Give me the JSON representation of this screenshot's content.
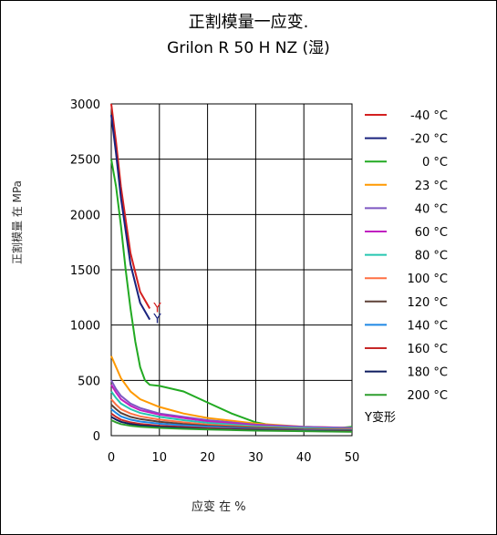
{
  "chart_data": {
    "type": "line",
    "title": "正割模量一应变.",
    "subtitle": "Grilon R 50 H NZ (湿)",
    "xlabel": "应变 在 %",
    "ylabel": "正割模量 在  MPa",
    "xlim": [
      0,
      50
    ],
    "ylim": [
      0,
      3000
    ],
    "xticks": [
      "0",
      "10",
      "20",
      "30",
      "40",
      "50"
    ],
    "yticks": [
      "0",
      "500",
      "1000",
      "1500",
      "2000",
      "2500",
      "3000"
    ],
    "grid": true,
    "legend_position": "right",
    "yield_note": "Y变形",
    "series": [
      {
        "name": "-40 °C",
        "color": "#d42020",
        "x": [
          0,
          1,
          2,
          4,
          6,
          8
        ],
        "y": [
          3000,
          2650,
          2250,
          1650,
          1300,
          1150
        ],
        "yield": {
          "x": 8,
          "y": 1150,
          "label": "Y"
        }
      },
      {
        "name": "-20 °C",
        "color": "#1a237e",
        "x": [
          0,
          1,
          2,
          4,
          6,
          8
        ],
        "y": [
          2900,
          2550,
          2150,
          1550,
          1200,
          1050
        ],
        "yield": {
          "x": 8,
          "y": 1050,
          "label": "Y"
        }
      },
      {
        "name": "0 °C",
        "color": "#22aa22",
        "x": [
          0,
          1,
          2,
          3,
          4,
          5,
          6,
          7,
          8,
          10,
          15,
          20,
          25,
          30,
          35,
          40,
          45,
          50
        ],
        "y": [
          2500,
          2250,
          1900,
          1500,
          1150,
          850,
          620,
          500,
          460,
          450,
          400,
          300,
          200,
          120,
          80,
          60,
          60,
          80
        ]
      },
      {
        "name": "23 °C",
        "color": "#ff9900",
        "x": [
          0,
          1,
          2,
          4,
          6,
          10,
          15,
          20,
          30,
          40,
          50
        ],
        "y": [
          720,
          620,
          520,
          400,
          330,
          260,
          200,
          160,
          110,
          80,
          70
        ]
      },
      {
        "name": "40 °C",
        "color": "#7e57c2",
        "x": [
          0,
          1,
          2,
          4,
          6,
          10,
          15,
          20,
          30,
          40,
          50
        ],
        "y": [
          500,
          420,
          360,
          290,
          250,
          200,
          170,
          140,
          100,
          80,
          70
        ]
      },
      {
        "name": "60 °C",
        "color": "#c020c0",
        "x": [
          0,
          1,
          2,
          4,
          6,
          10,
          15,
          20,
          30,
          40,
          50
        ],
        "y": [
          460,
          390,
          330,
          270,
          230,
          190,
          160,
          130,
          95,
          75,
          65
        ]
      },
      {
        "name": "80 °C",
        "color": "#26c6b0",
        "x": [
          0,
          1,
          2,
          4,
          6,
          10,
          15,
          20,
          30,
          40,
          50
        ],
        "y": [
          400,
          340,
          290,
          240,
          205,
          170,
          140,
          115,
          85,
          70,
          60
        ]
      },
      {
        "name": "100 °C",
        "color": "#ff7043",
        "x": [
          0,
          1,
          2,
          4,
          6,
          10,
          15,
          20,
          30,
          40,
          50
        ],
        "y": [
          330,
          280,
          240,
          200,
          175,
          145,
          120,
          100,
          75,
          60,
          55
        ]
      },
      {
        "name": "120 °C",
        "color": "#5d4037",
        "x": [
          0,
          1,
          2,
          4,
          6,
          10,
          15,
          20,
          30,
          40,
          50
        ],
        "y": [
          280,
          240,
          205,
          170,
          150,
          125,
          105,
          90,
          70,
          55,
          50
        ]
      },
      {
        "name": "140 °C",
        "color": "#1e88e5",
        "x": [
          0,
          1,
          2,
          4,
          6,
          10,
          15,
          20,
          30,
          40,
          50
        ],
        "y": [
          240,
          205,
          175,
          145,
          128,
          108,
          92,
          80,
          62,
          50,
          45
        ]
      },
      {
        "name": "160 °C",
        "color": "#c62828",
        "x": [
          0,
          1,
          2,
          4,
          6,
          10,
          15,
          20,
          30,
          40,
          50
        ],
        "y": [
          200,
          170,
          145,
          120,
          106,
          90,
          78,
          68,
          55,
          45,
          40
        ]
      },
      {
        "name": "180 °C",
        "color": "#0d1b5e",
        "x": [
          0,
          1,
          2,
          4,
          6,
          10,
          15,
          20,
          30,
          40,
          50
        ],
        "y": [
          170,
          145,
          125,
          105,
          93,
          80,
          70,
          60,
          50,
          42,
          38
        ]
      },
      {
        "name": "200 °C",
        "color": "#2e9e2e",
        "x": [
          0,
          1,
          2,
          4,
          6,
          10,
          15,
          20,
          30,
          40,
          50
        ],
        "y": [
          140,
          120,
          105,
          90,
          80,
          70,
          62,
          55,
          45,
          40,
          35
        ]
      }
    ]
  }
}
